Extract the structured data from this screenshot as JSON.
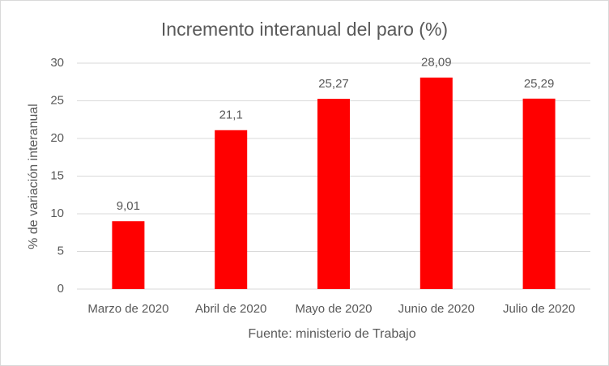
{
  "chart_data": {
    "type": "bar",
    "title": "Incremento interanual del paro  (%)",
    "x_label": "Fuente: ministerio de Trabajo",
    "y_label": "% de variación interanual",
    "categories": [
      "Marzo de 2020",
      "Abril de 2020",
      "Mayo de 2020",
      "Junio de 2020",
      "Julio de 2020"
    ],
    "values": [
      9.01,
      21.1,
      25.27,
      28.09,
      25.29
    ],
    "value_labels": [
      "9,01",
      "21,1",
      "25,27",
      "28,09",
      "25,29"
    ],
    "color": "#ff0000",
    "ylim": [
      0,
      30
    ],
    "yticks": [
      0,
      5,
      10,
      15,
      20,
      25,
      30
    ],
    "grid": true
  }
}
